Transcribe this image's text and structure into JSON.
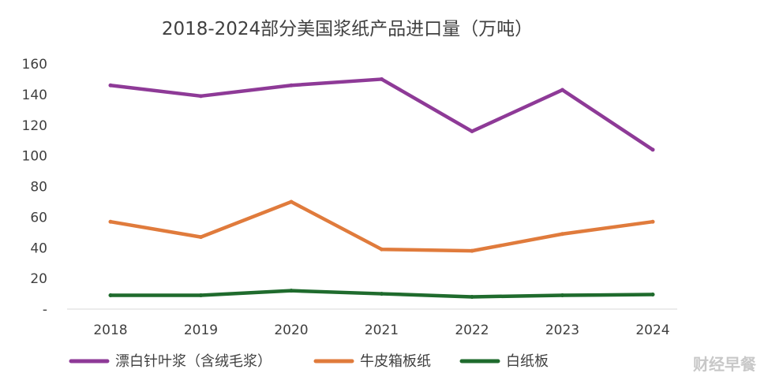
{
  "chart_data": {
    "type": "line",
    "title": "2018-2024部分美国浆纸产品进口量（万吨）",
    "x": [
      "2018",
      "2019",
      "2020",
      "2021",
      "2022",
      "2023",
      "2024"
    ],
    "ylim": [
      0,
      160
    ],
    "y_ticks": [
      "-",
      "20",
      "40",
      "60",
      "80",
      "100",
      "120",
      "140",
      "160"
    ],
    "grid": false,
    "legend_position": "bottom",
    "series": [
      {
        "name": "漂白针叶浆（含绒毛浆）",
        "color": "#8e3a97",
        "values": [
          146,
          139,
          146,
          150,
          116,
          143,
          104
        ]
      },
      {
        "name": "牛皮箱板纸",
        "color": "#e07b3c",
        "values": [
          57,
          47,
          70,
          39,
          38,
          49,
          57
        ]
      },
      {
        "name": "白纸板",
        "color": "#1f6b2d",
        "values": [
          9,
          9,
          12,
          10,
          8,
          9,
          9.5
        ]
      }
    ]
  },
  "watermark": "财经早餐"
}
